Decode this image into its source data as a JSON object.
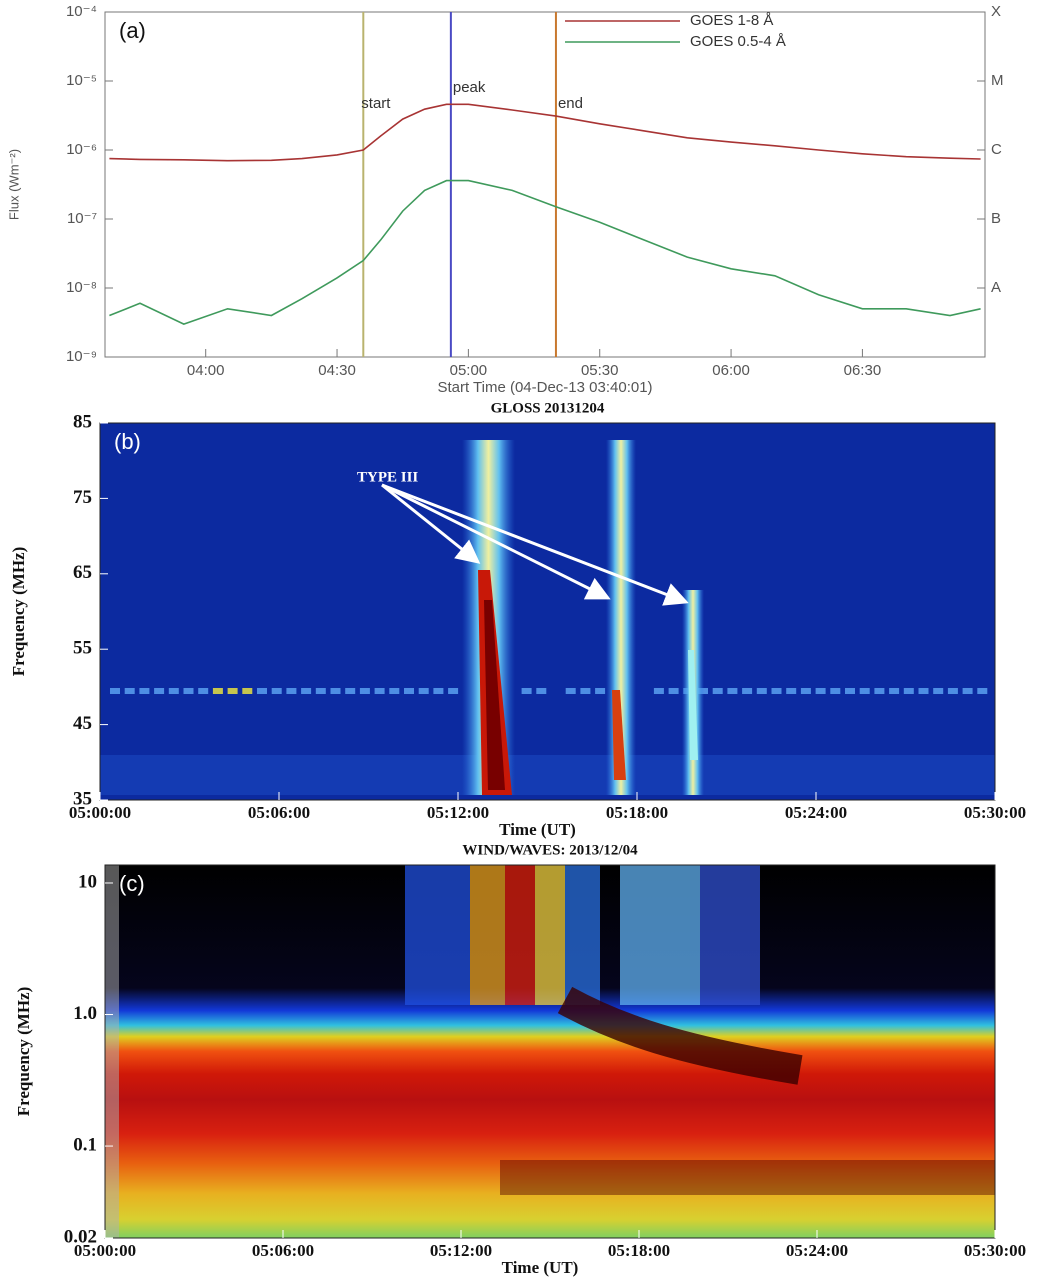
{
  "chart_data": [
    {
      "type": "line",
      "panel_label": "(a)",
      "y_label": "Flux (Wm⁻²)",
      "x_label": "Start Time (04-Dec-13 03:40:01)",
      "log_y": true,
      "legend": "upper right",
      "xlim": [
        "03:37",
        "06:58"
      ],
      "xticks": [
        "04:00",
        "04:30",
        "05:00",
        "05:30",
        "06:00",
        "06:30"
      ],
      "ylim": [
        1e-09,
        0.0001
      ],
      "yticks": [
        {
          "value": 1e-09,
          "label": "10⁻⁹"
        },
        {
          "value": 1e-08,
          "label": "10⁻⁸"
        },
        {
          "value": 1e-07,
          "label": "10⁻⁷"
        },
        {
          "value": 1e-06,
          "label": "10⁻⁶"
        },
        {
          "value": 1e-05,
          "label": "10⁻⁵"
        },
        {
          "value": 0.0001,
          "label": "10⁻⁴"
        }
      ],
      "y2lim": [
        1e-09,
        0.0001
      ],
      "y2ticks": [
        {
          "value": 1e-08,
          "label": "A"
        },
        {
          "value": 1e-07,
          "label": "B"
        },
        {
          "value": 1e-06,
          "label": "C"
        },
        {
          "value": 1e-05,
          "label": "M"
        },
        {
          "value": 0.0001,
          "label": "X"
        }
      ],
      "x": [
        "03:38",
        "03:45",
        "03:55",
        "04:05",
        "04:15",
        "04:22",
        "04:30",
        "04:36",
        "04:40",
        "04:45",
        "04:50",
        "04:55",
        "05:00",
        "05:10",
        "05:20",
        "05:30",
        "05:40",
        "05:50",
        "06:00",
        "06:10",
        "06:20",
        "06:30",
        "06:40",
        "06:50",
        "06:57"
      ],
      "series": [
        {
          "name": "GOES 1-8 Å",
          "color": "#a83434",
          "values": [
            7.5e-07,
            7.3e-07,
            7.2e-07,
            7e-07,
            7.1e-07,
            7.5e-07,
            8.5e-07,
            1e-06,
            1.6e-06,
            2.8e-06,
            3.9e-06,
            4.6e-06,
            4.6e-06,
            3.8e-06,
            3.1e-06,
            2.4e-06,
            1.9e-06,
            1.5e-06,
            1.3e-06,
            1.15e-06,
            1e-06,
            8.8e-07,
            8e-07,
            7.6e-07,
            7.4e-07
          ]
        },
        {
          "name": "GOES 0.5-4 Å",
          "color": "#3f9a5c",
          "values": [
            4e-09,
            6e-09,
            3e-09,
            5e-09,
            4e-09,
            7e-09,
            1.4e-08,
            2.5e-08,
            5e-08,
            1.3e-07,
            2.6e-07,
            3.6e-07,
            3.6e-07,
            2.6e-07,
            1.5e-07,
            9e-08,
            5e-08,
            2.8e-08,
            1.9e-08,
            1.5e-08,
            8e-09,
            5e-09,
            5e-09,
            4e-09,
            5e-09
          ]
        }
      ],
      "events": [
        {
          "label": "start",
          "time": "04:36",
          "color": "#b9b36e"
        },
        {
          "label": "peak",
          "time": "04:56",
          "color": "#4a4ac4"
        },
        {
          "label": "end",
          "time": "05:20",
          "color": "#c8782e"
        }
      ]
    },
    {
      "type": "spectrogram",
      "panel_label": "(b)",
      "title": "GLOSS 20131204",
      "y_label": "Frequency (MHz)",
      "x_label": "Time (UT)",
      "annotation": "TYPE III",
      "log_y": false,
      "xlim": [
        "05:00:00",
        "05:30:00"
      ],
      "xticks": [
        "05:00:00",
        "05:06:00",
        "05:12:00",
        "05:18:00",
        "05:24:00",
        "05:30:00"
      ],
      "ylim": [
        35,
        85
      ],
      "yticks": [
        35,
        45,
        55,
        65,
        75,
        85
      ]
    },
    {
      "type": "spectrogram",
      "panel_label": "(c)",
      "title": "WIND/WAVES: 2013/12/04",
      "y_label": "Frequency (MHz)",
      "x_label": "Time (UT)",
      "log_y": true,
      "xlim": [
        "05:00:00",
        "05:30:00"
      ],
      "xticks": [
        "05:00:00",
        "05:06:00",
        "05:12:00",
        "05:18:00",
        "05:24:00",
        "05:30:00"
      ],
      "ylim": [
        0.02,
        13.7
      ],
      "yticks": [
        0.02,
        0.1,
        {
          "value": 1,
          "label": "1.0"
        },
        10
      ]
    }
  ]
}
